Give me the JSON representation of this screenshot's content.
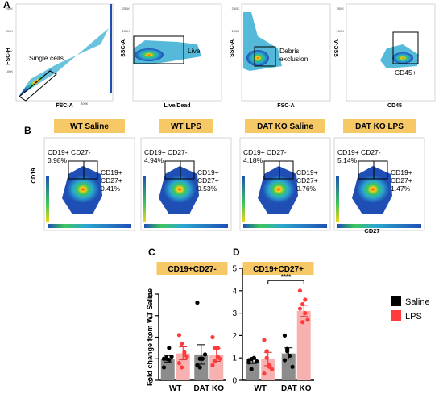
{
  "panel_letters": {
    "a": "A",
    "b": "B",
    "c": "C",
    "d": "D"
  },
  "gating": [
    {
      "ylabel": "FSC-H",
      "xlabel": "FSC-A",
      "gate_label": "Single cells"
    },
    {
      "ylabel": "SSC-A",
      "xlabel": "Live/Dead",
      "gate_label": "Live"
    },
    {
      "ylabel": "SSC-A",
      "xlabel": "FSC-A",
      "gate_label": "Debris exclusion"
    },
    {
      "ylabel": "SSC-A",
      "xlabel": "CD45",
      "gate_label": "CD45+"
    }
  ],
  "flow_panels": [
    {
      "title": "WT Saline",
      "q1_label": "CD19+ CD27-",
      "q1_pct": "3.98%",
      "q2_label": "CD19+ CD27+",
      "q2_pct": "0.41%"
    },
    {
      "title": "WT LPS",
      "q1_label": "CD19+ CD27-",
      "q1_pct": "4.94%",
      "q2_label": "CD19+ CD27+",
      "q2_pct": "0.53%"
    },
    {
      "title": "DAT KO Saline",
      "q1_label": "CD19+ CD27-",
      "q1_pct": "4.18%",
      "q2_label": "CD19+ CD27+",
      "q2_pct": "0.76%"
    },
    {
      "title": "DAT KO LPS",
      "q1_label": "CD19+ CD27-",
      "q1_pct": "5.14%",
      "q2_label": "CD19+ CD27+",
      "q2_pct": "1.47%"
    }
  ],
  "flow_axes": {
    "ylabel": "CD19",
    "xlabel": "CD27"
  },
  "colors": {
    "saline": "#000000",
    "lps": "#ff3b3b",
    "saline_bar": "#8c8c8c",
    "lps_bar": "#f7b1b1",
    "title_box": "#f6c866"
  },
  "legend": {
    "saline": "Saline",
    "lps": "LPS"
  },
  "chart_data": [
    {
      "type": "bar",
      "title": "CD19+CD27-",
      "ylabel": "Fold change from WT Saline",
      "ylim": [
        0,
        4
      ],
      "yticks": [
        "0",
        "1",
        "2",
        "3",
        "4"
      ],
      "categories": [
        "WT",
        "DAT KO"
      ],
      "series": [
        {
          "name": "Saline",
          "values": [
            1.0,
            1.2
          ],
          "errors": [
            0.15,
            0.45
          ],
          "points": [
            [
              1.0,
              1.05,
              0.95,
              1.1,
              0.6,
              1.0,
              1.5
            ],
            [
              3.6,
              1.0,
              1.0,
              1.2,
              0.7,
              0.6
            ]
          ]
        },
        {
          "name": "LPS",
          "values": [
            1.25,
            1.18
          ],
          "errors": [
            0.3,
            0.3
          ],
          "points": [
            [
              2.1,
              1.7,
              1.3,
              1.1,
              0.8,
              0.6,
              1.2
            ],
            [
              2.0,
              1.5,
              1.1,
              1.0,
              0.7,
              0.9,
              1.5
            ]
          ]
        }
      ]
    },
    {
      "type": "bar",
      "title": "CD19+CD27+",
      "ylabel": "",
      "ylim": [
        0,
        5
      ],
      "yticks": [
        "0",
        "1",
        "2",
        "3",
        "4",
        "5"
      ],
      "categories": [
        "WT",
        "DAT KO"
      ],
      "significance": "****",
      "series": [
        {
          "name": "Saline",
          "values": [
            0.85,
            1.2
          ],
          "errors": [
            0.1,
            0.25
          ],
          "points": [
            [
              0.9,
              0.5,
              1.0,
              0.85,
              0.8,
              0.95
            ],
            [
              2.0,
              1.3,
              1.1,
              0.6,
              0.9,
              1.4
            ]
          ]
        },
        {
          "name": "LPS",
          "values": [
            0.95,
            3.1
          ],
          "errors": [
            0.3,
            0.25
          ],
          "points": [
            [
              1.8,
              1.0,
              0.7,
              0.5,
              0.3,
              1.3,
              0.6
            ],
            [
              4.0,
              3.4,
              3.0,
              2.7,
              3.2,
              2.6,
              3.6
            ]
          ]
        }
      ]
    }
  ]
}
